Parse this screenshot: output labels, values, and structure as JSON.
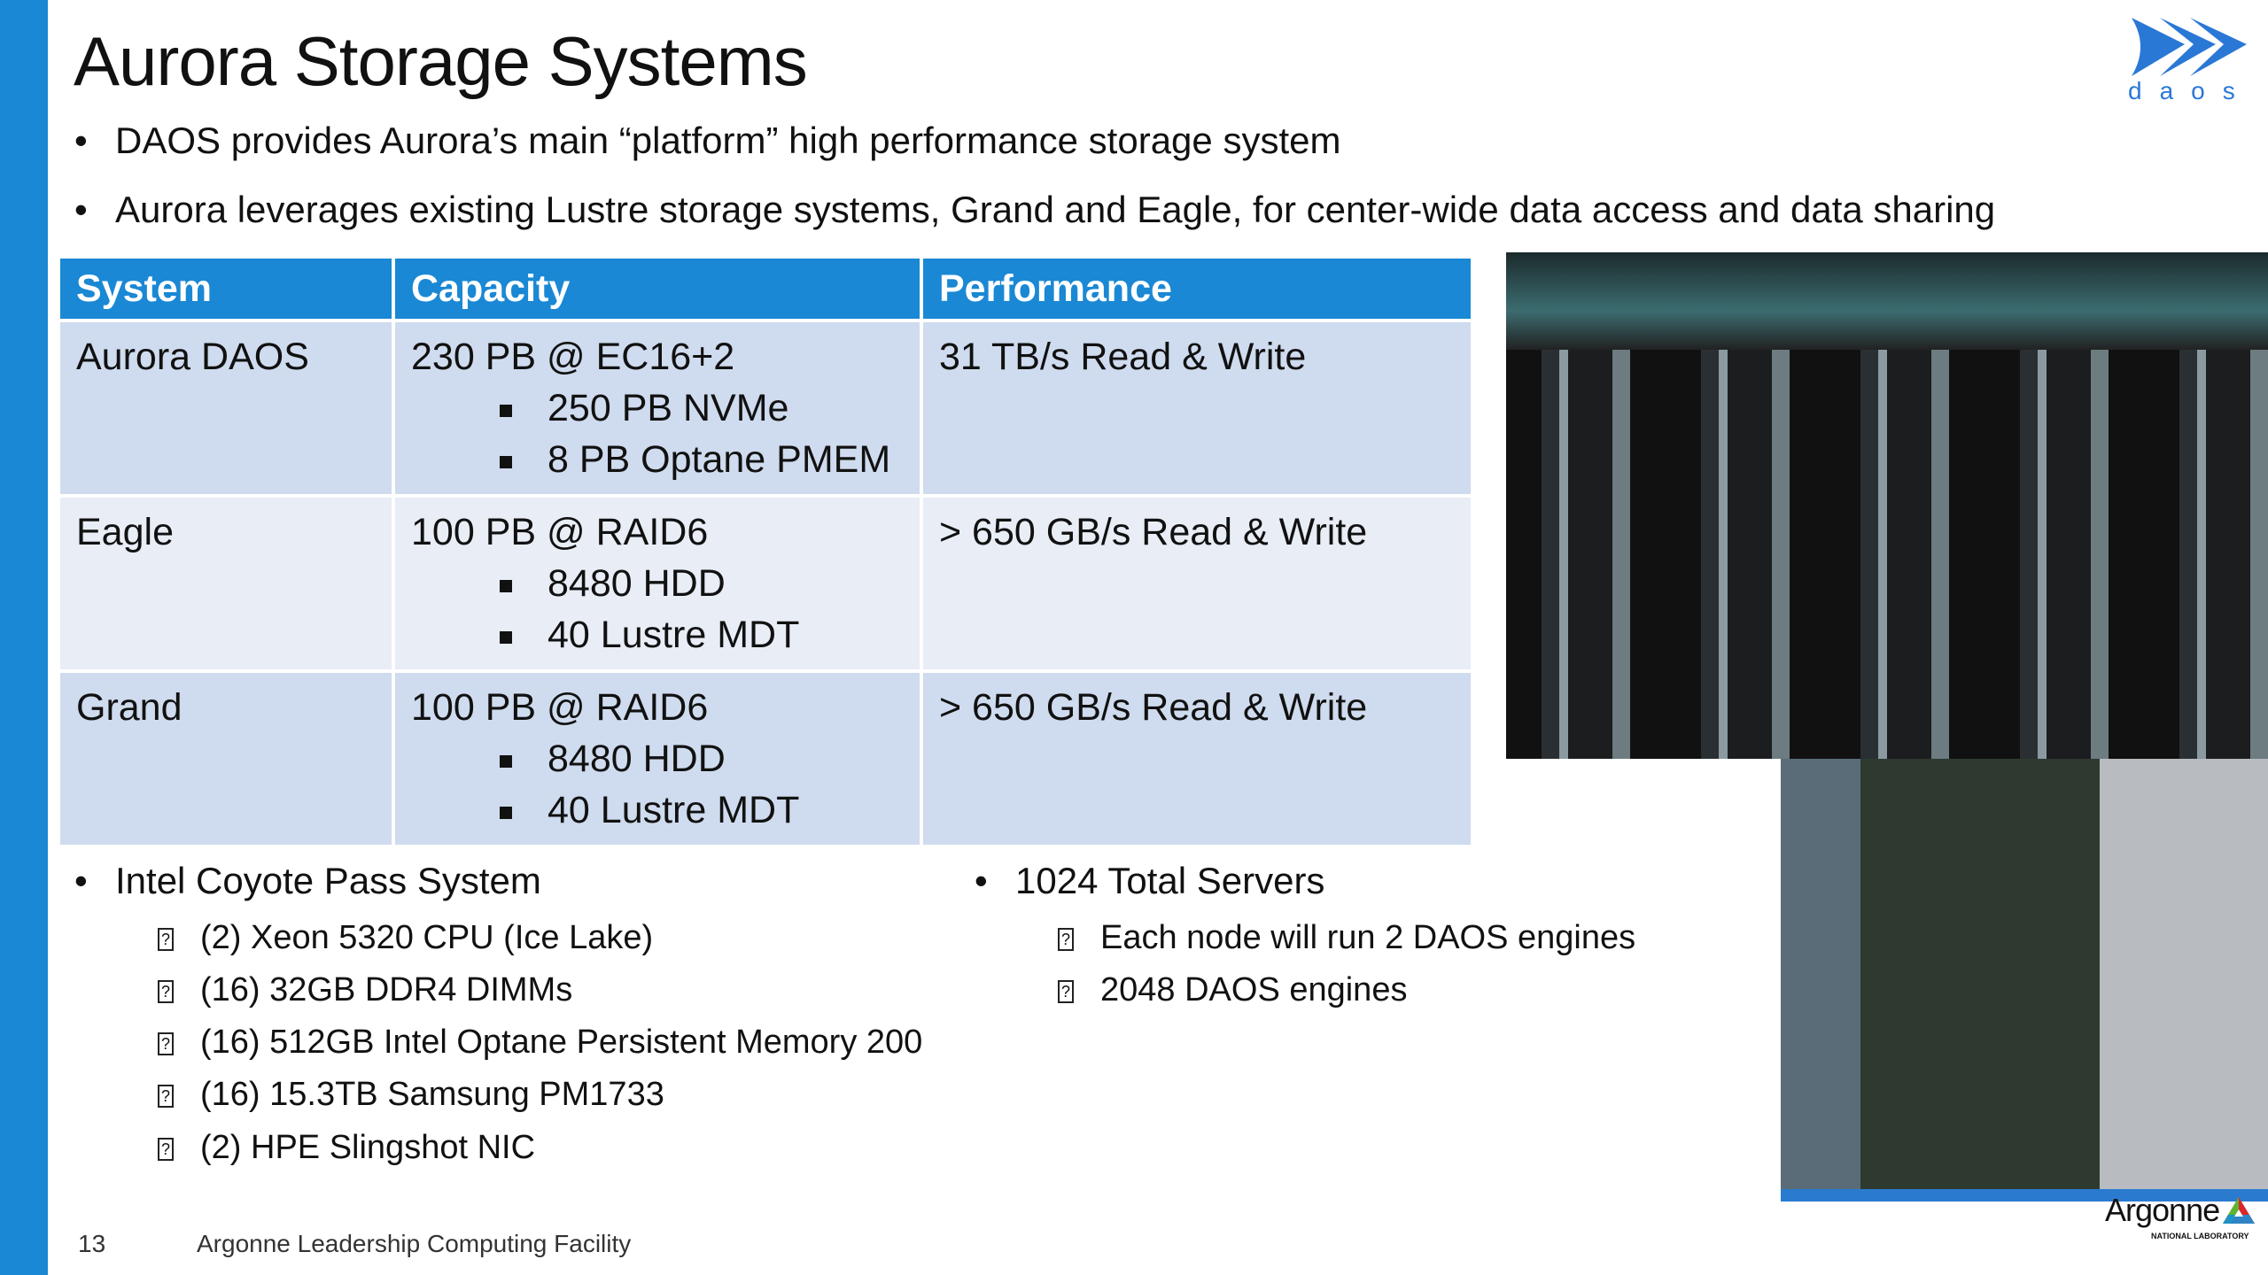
{
  "title": "Aurora Storage Systems",
  "bullets": [
    "DAOS provides Aurora’s main “platform” high performance storage system",
    "Aurora leverages existing Lustre storage systems, Grand and Eagle, for center-wide data access and data sharing"
  ],
  "table": {
    "headers": [
      "System",
      "Capacity",
      "Performance"
    ],
    "rows": [
      {
        "system": "Aurora DAOS",
        "capacity": "230 PB @ EC16+2",
        "sub": [
          "250 PB NVMe",
          "8 PB Optane PMEM"
        ],
        "performance": "31 TB/s Read & Write"
      },
      {
        "system": "Eagle",
        "capacity": "100 PB @ RAID6",
        "sub": [
          "8480 HDD",
          "40 Lustre MDT"
        ],
        "performance": "> 650 GB/s Read & Write"
      },
      {
        "system": "Grand",
        "capacity": "100 PB @ RAID6",
        "sub": [
          "8480 HDD",
          "40 Lustre MDT"
        ],
        "performance": "> 650 GB/s Read & Write"
      }
    ]
  },
  "left_list": {
    "heading": "Intel Coyote Pass System",
    "items": [
      "(2) Xeon 5320 CPU (Ice Lake)",
      "(16) 32GB DDR4 DIMMs",
      "(16) 512GB Intel Optane Persistent Memory 200",
      "(16) 15.3TB Samsung PM1733",
      "(2) HPE Slingshot NIC"
    ]
  },
  "right_list": {
    "heading": "1024 Total Servers",
    "items": [
      "Each node will run 2 DAOS engines",
      "2048 DAOS engines"
    ]
  },
  "footer": {
    "page": "13",
    "org": "Argonne Leadership Computing Facility"
  },
  "logos": {
    "daos": "daos",
    "argonne": "Argonne",
    "argonne_sub": "NATIONAL LABORATORY"
  },
  "colors": {
    "accent": "#1a88d4",
    "row_dark": "#cfdbee",
    "row_light": "#e8edf6"
  }
}
